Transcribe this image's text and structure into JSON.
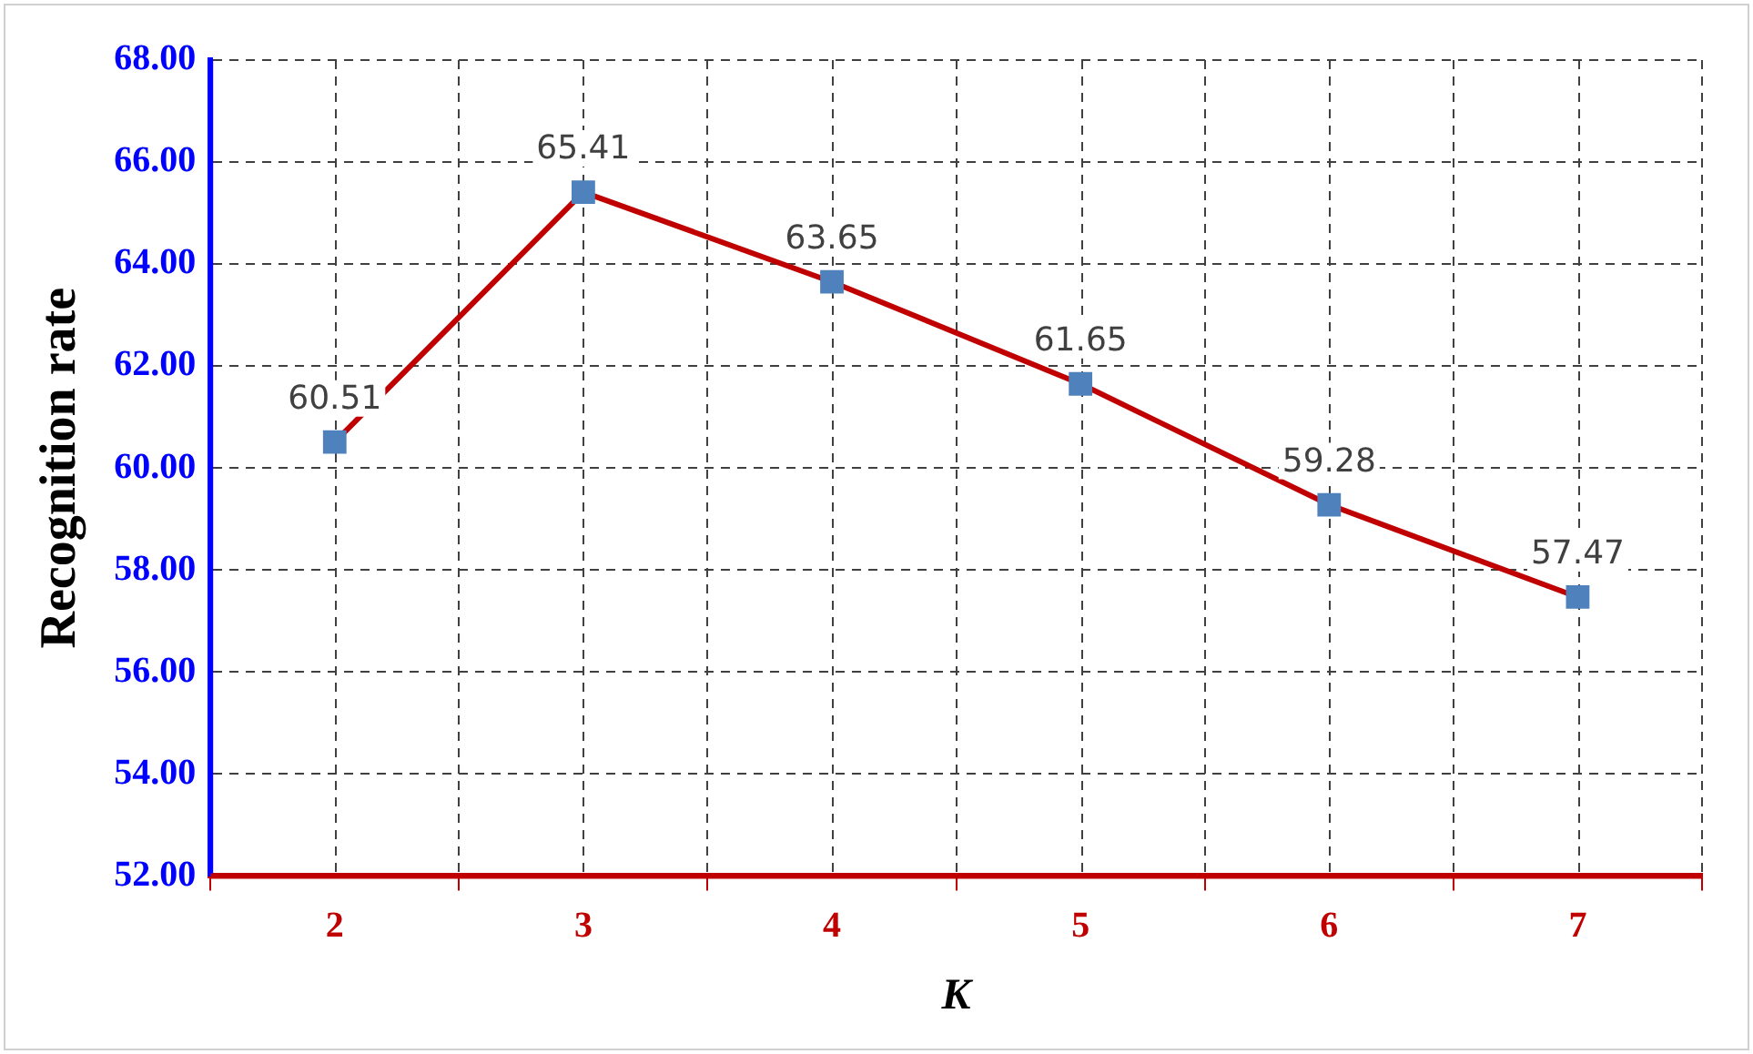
{
  "chart_data": {
    "type": "line",
    "xlabel": "K",
    "ylabel": "Recognition rate",
    "categories": [
      "2",
      "3",
      "4",
      "5",
      "6",
      "7"
    ],
    "series": [
      {
        "color": "#c00000",
        "values": [
          60.51,
          65.41,
          63.65,
          61.65,
          59.28,
          57.47
        ]
      }
    ],
    "ylim": [
      52,
      68
    ],
    "yticks": [
      {
        "value": 52,
        "label": "52.00"
      },
      {
        "value": 54,
        "label": "54.00"
      },
      {
        "value": 56,
        "label": "56.00"
      },
      {
        "value": 58,
        "label": "58.00"
      },
      {
        "value": 60,
        "label": "60.00"
      },
      {
        "value": 62,
        "label": "62.00"
      },
      {
        "value": 64,
        "label": "64.00"
      },
      {
        "value": 66,
        "label": "66.00"
      },
      {
        "value": 68,
        "label": "68.00"
      }
    ],
    "grid": true,
    "marker": "square",
    "line_style": "solid",
    "data_labels": true
  }
}
